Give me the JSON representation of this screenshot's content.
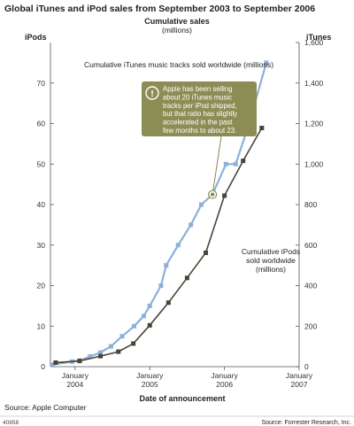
{
  "chart_data": {
    "type": "line",
    "title": "Global iTunes and iPod sales from September 2003 to September 2006",
    "subtitle": "Cumulative sales",
    "subtitle_units": "(millions)",
    "y_left_label": "iPods",
    "y_right_label": "iTunes",
    "xlabel": "Date of announcement",
    "x_ticks": [
      {
        "x": 2004.0,
        "line1": "January",
        "line2": "2004"
      },
      {
        "x": 2005.0,
        "line1": "January",
        "line2": "2005"
      },
      {
        "x": 2006.0,
        "line1": "January",
        "line2": "2006"
      },
      {
        "x": 2007.0,
        "line1": "January",
        "line2": "2007"
      }
    ],
    "xlim": [
      2003.67,
      2007.0
    ],
    "ylim_left": [
      0,
      80
    ],
    "ylim_right": [
      0,
      1600
    ],
    "y_left_ticks": [
      "0",
      "10",
      "20",
      "30",
      "40",
      "50",
      "60",
      "70"
    ],
    "y_right_ticks": [
      "0",
      "200",
      "400",
      "600",
      "800",
      "1,000",
      "1,200",
      "1,400",
      "1,600"
    ],
    "legend": "none",
    "grid": false,
    "series": [
      {
        "name": "Cumulative iTunes music tracks sold worldwide (millions)",
        "axis": "right",
        "color": "#8db0d8",
        "marker": "square",
        "x": [
          2003.7,
          2003.96,
          2004.06,
          2004.2,
          2004.34,
          2004.48,
          2004.63,
          2004.79,
          2004.92,
          2005.0,
          2005.15,
          2005.22,
          2005.38,
          2005.55,
          2005.69,
          2005.84,
          2006.02,
          2006.15,
          2006.33,
          2006.56
        ],
        "y": [
          10,
          25,
          30,
          50,
          70,
          100,
          150,
          200,
          250,
          300,
          400,
          500,
          600,
          700,
          800,
          850,
          1000,
          1000,
          1200,
          1500
        ]
      },
      {
        "name": "Cumulative iPods sold worldwide (millions)",
        "axis": "left",
        "color": "#4a4336",
        "marker": "square",
        "x": [
          2003.74,
          2004.06,
          2004.34,
          2004.58,
          2004.78,
          2005.0,
          2005.25,
          2005.5,
          2005.75,
          2006.0,
          2006.25,
          2006.5
        ],
        "y": [
          1.0,
          1.4,
          2.6,
          3.7,
          5.7,
          10.2,
          15.8,
          21.9,
          28.1,
          42.2,
          50.8,
          58.9
        ]
      }
    ],
    "annotations": {
      "itunes_label": "Cumulative iTunes music tracks sold worldwide (millions)",
      "ipods_label_lines": [
        "Cumulative iPods",
        "sold worldwide",
        "(millions)"
      ],
      "callout_icon": "exclamation-icon",
      "callout_lines": [
        "Apple has been selling",
        "about 20 iTunes music",
        "tracks per iPod shipped,",
        "but that ratio has slightly",
        "accelerated in the past",
        "few months to about 23."
      ]
    }
  },
  "footer": {
    "source_left": "Source: Apple Computer",
    "figure_id": "40858",
    "source_right": "Source: Forrester Research, Inc."
  }
}
